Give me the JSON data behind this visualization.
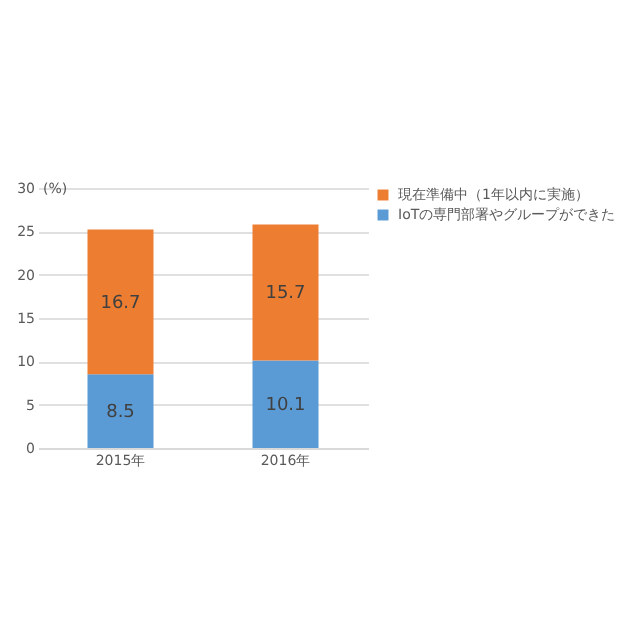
{
  "chart_data": {
    "type": "bar",
    "stacked": true,
    "categories": [
      "2015年",
      "2016年"
    ],
    "series": [
      {
        "name": "IoTの専門部署やグループができた",
        "color": "#5b9bd5",
        "values": [
          8.5,
          10.1
        ]
      },
      {
        "name": "現在準備中（1年以内に実施）",
        "color": "#ed7d31",
        "values": [
          16.7,
          15.7
        ]
      }
    ],
    "ylabel": "(%)",
    "ylim": [
      0,
      30
    ],
    "yticks": [
      0,
      5,
      10,
      15,
      20,
      25,
      30
    ],
    "grid": "y",
    "legend": "right",
    "data_labels": true
  }
}
